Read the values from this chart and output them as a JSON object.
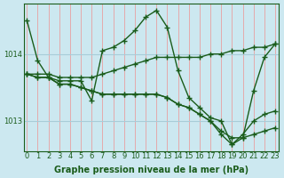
{
  "xlabel": "Graphe pression niveau de la mer (hPa)",
  "ylabel": "",
  "background_color": "#cce8f0",
  "grid_color_v": "#e8a0a0",
  "grid_color_h": "#a8ccd8",
  "line_color": "#1a5c1a",
  "marker": "+",
  "markersize": 4,
  "linewidth": 1.0,
  "ylim": [
    1012.55,
    1014.75
  ],
  "xlim": [
    -0.3,
    23.3
  ],
  "yticks": [
    1013,
    1014
  ],
  "xticks": [
    0,
    1,
    2,
    3,
    4,
    5,
    6,
    7,
    8,
    9,
    10,
    11,
    12,
    13,
    14,
    15,
    16,
    17,
    18,
    19,
    20,
    21,
    22,
    23
  ],
  "series": [
    [
      1014.5,
      1013.9,
      1013.65,
      1013.6,
      1013.6,
      1013.6,
      1013.3,
      1014.05,
      1014.1,
      1014.2,
      1014.35,
      1014.55,
      1014.65,
      1014.4,
      1013.75,
      1013.35,
      1013.2,
      1013.05,
      1013.0,
      1012.65,
      1012.75,
      1013.45,
      1013.95,
      1014.15
    ],
    [
      1013.7,
      1013.7,
      1013.7,
      1013.65,
      1013.65,
      1013.65,
      1013.65,
      1013.7,
      1013.75,
      1013.8,
      1013.85,
      1013.9,
      1013.95,
      1013.95,
      1013.95,
      1013.95,
      1013.95,
      1014.0,
      1014.0,
      1014.05,
      1014.05,
      1014.1,
      1014.1,
      1014.15
    ],
    [
      1013.7,
      1013.65,
      1013.65,
      1013.55,
      1013.55,
      1013.5,
      1013.45,
      1013.4,
      1013.4,
      1013.4,
      1013.4,
      1013.4,
      1013.4,
      1013.35,
      1013.25,
      1013.2,
      1013.1,
      1013.0,
      1012.85,
      1012.75,
      1012.75,
      1012.8,
      1012.85,
      1012.9
    ],
    [
      1013.7,
      1013.65,
      1013.65,
      1013.55,
      1013.55,
      1013.5,
      1013.45,
      1013.4,
      1013.4,
      1013.4,
      1013.4,
      1013.4,
      1013.4,
      1013.35,
      1013.25,
      1013.2,
      1013.1,
      1013.0,
      1012.8,
      1012.65,
      1012.8,
      1013.0,
      1013.1,
      1013.15
    ]
  ],
  "tick_fontsize": 6,
  "label_fontsize": 7,
  "label_fontweight": "bold"
}
